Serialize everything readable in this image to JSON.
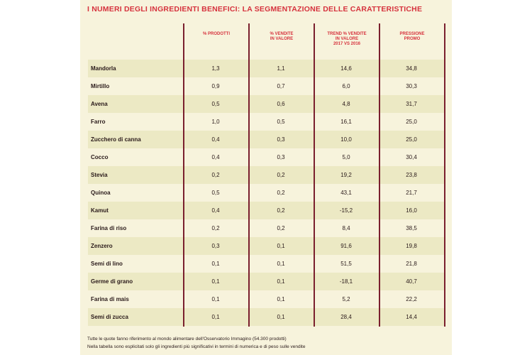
{
  "title": "I NUMERI DEGLI INGREDIENTI BENEFICI: LA SEGMENTAZIONE DELLE CARATTERISTICHE",
  "headers": {
    "col1": "% PRODOTTI",
    "col2": "% VENDITE\nIN VALORE",
    "col3": "TREND % VENDITE\nIN VALORE\n2017 VS 2016",
    "col4": "PRESSIONE\nPROMO"
  },
  "rows": [
    {
      "name": "Mandorla",
      "c1": "1,3",
      "c2": "1,1",
      "c3": "14,6",
      "c4": "34,8"
    },
    {
      "name": "Mirtillo",
      "c1": "0,9",
      "c2": "0,7",
      "c3": "6,0",
      "c4": "30,3"
    },
    {
      "name": "Avena",
      "c1": "0,5",
      "c2": "0,6",
      "c3": "4,8",
      "c4": "31,7"
    },
    {
      "name": "Farro",
      "c1": "1,0",
      "c2": "0,5",
      "c3": "16,1",
      "c4": "25,0"
    },
    {
      "name": "Zucchero di canna",
      "c1": "0,4",
      "c2": "0,3",
      "c3": "10,0",
      "c4": "25,0"
    },
    {
      "name": "Cocco",
      "c1": "0,4",
      "c2": "0,3",
      "c3": "5,0",
      "c4": "30,4"
    },
    {
      "name": "Stevia",
      "c1": "0,2",
      "c2": "0,2",
      "c3": "19,2",
      "c4": "23,8"
    },
    {
      "name": "Quinoa",
      "c1": "0,5",
      "c2": "0,2",
      "c3": "43,1",
      "c4": "21,7"
    },
    {
      "name": "Kamut",
      "c1": "0,4",
      "c2": "0,2",
      "c3": "-15,2",
      "c4": "16,0"
    },
    {
      "name": "Farina di riso",
      "c1": "0,2",
      "c2": "0,2",
      "c3": "8,4",
      "c4": "38,5"
    },
    {
      "name": "Zenzero",
      "c1": "0,3",
      "c2": "0,1",
      "c3": "91,6",
      "c4": "19,8"
    },
    {
      "name": "Semi di lino",
      "c1": "0,1",
      "c2": "0,1",
      "c3": "51,5",
      "c4": "21,8"
    },
    {
      "name": "Germe di grano",
      "c1": "0,1",
      "c2": "0,1",
      "c3": "-18,1",
      "c4": "40,7"
    },
    {
      "name": "Farina di mais",
      "c1": "0,1",
      "c2": "0,1",
      "c3": "5,2",
      "c4": "22,2"
    },
    {
      "name": "Semi di zucca",
      "c1": "0,1",
      "c2": "0,1",
      "c3": "28,4",
      "c4": "14,4"
    }
  ],
  "notes": [
    "Tutte le quote fanno riferimento al mondo alimentare dell'Osservatorio Immagino (54.300 prodotti)",
    "Nella tabella sono esplicitati solo gli ingredienti più significativi in termini di numerica e di peso sulle vendite"
  ],
  "colors": {
    "title": "#d6323d",
    "panel": "#f7f3dc",
    "band": "#ece9c4",
    "rule": "#7a1f2e"
  }
}
